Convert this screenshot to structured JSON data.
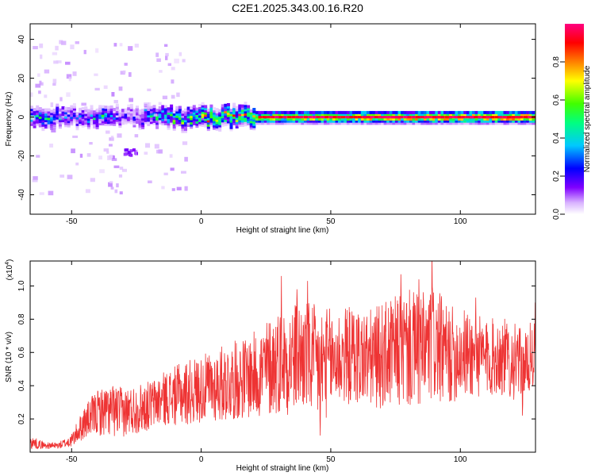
{
  "chart_data": [
    {
      "type": "heatmap",
      "title": "C2E1.2025.343.00.16.R20",
      "xlabel": "Height of straight line (km)",
      "ylabel": "Frequency (Hz)",
      "xlim": [
        -66,
        129
      ],
      "ylim": [
        -50,
        48
      ],
      "xticks": [
        -50,
        0,
        50,
        100
      ],
      "yticks": [
        -40,
        -20,
        0,
        20,
        40
      ],
      "colorbar": {
        "label": "Normalized spectral amplitude",
        "range": [
          0,
          1
        ],
        "ticks": [
          "0.0",
          "0.2",
          "0.4",
          "0.6",
          "0.8"
        ],
        "tick_values": [
          0.0,
          0.2,
          0.4,
          0.6,
          0.8
        ],
        "colors": [
          "#ffffff",
          "#d9b3ff",
          "#8000ff",
          "#0000ff",
          "#00c8ff",
          "#00ff80",
          "#40ff00",
          "#ffff00",
          "#ff8000",
          "#ff0000",
          "#ff0080"
        ]
      },
      "description_points": [
        {
          "x": -62,
          "y": 0,
          "amp": 0.45
        },
        {
          "x": -55,
          "y": 2,
          "amp": 0.35
        },
        {
          "x": -45,
          "y": -1,
          "amp": 0.3
        },
        {
          "x": -38,
          "y": 3,
          "amp": 0.4
        },
        {
          "x": -28,
          "y": -18,
          "amp": 0.2
        },
        {
          "x": -20,
          "y": 1,
          "amp": 0.4
        },
        {
          "x": -5,
          "y": 2,
          "amp": 0.6
        },
        {
          "x": 10,
          "y": 1,
          "amp": 0.7
        },
        {
          "x": 30,
          "y": 0,
          "amp": 0.85
        },
        {
          "x": 60,
          "y": 0,
          "amp": 0.9
        },
        {
          "x": 100,
          "y": 0,
          "amp": 0.95
        },
        {
          "x": 128,
          "y": 0,
          "amp": 0.95
        }
      ]
    },
    {
      "type": "line",
      "title": "",
      "xlabel": "Height of straight line (km)",
      "ylabel": "SNR (10 * v/v)",
      "ylabel_scale": "(x10",
      "ylabel_scale_exp": "4",
      "xlim": [
        -66,
        129
      ],
      "ylim": [
        0,
        1.15
      ],
      "xticks": [
        -50,
        0,
        50,
        100
      ],
      "yticks": [
        "0.2",
        "0.4",
        "0.6",
        "0.8",
        "1.0"
      ],
      "ytick_values": [
        0.2,
        0.4,
        0.6,
        0.8,
        1.0
      ],
      "color": "#ee3333",
      "series": [
        {
          "name": "SNR",
          "x": [
            -66,
            -60,
            -55,
            -50,
            -45,
            -40,
            -35,
            -30,
            -25,
            -20,
            -15,
            -10,
            -5,
            0,
            5,
            10,
            15,
            20,
            25,
            30,
            35,
            40,
            45,
            50,
            55,
            60,
            65,
            70,
            75,
            80,
            85,
            90,
            95,
            100,
            105,
            110,
            115,
            120,
            125,
            129
          ],
          "mean": [
            0.06,
            0.04,
            0.04,
            0.07,
            0.18,
            0.24,
            0.25,
            0.24,
            0.26,
            0.28,
            0.32,
            0.34,
            0.36,
            0.38,
            0.4,
            0.42,
            0.44,
            0.46,
            0.5,
            0.55,
            0.56,
            0.58,
            0.52,
            0.55,
            0.58,
            0.58,
            0.56,
            0.58,
            0.6,
            0.62,
            0.6,
            0.65,
            0.58,
            0.6,
            0.58,
            0.56,
            0.58,
            0.55,
            0.52,
            0.6
          ],
          "amplitude": [
            0.04,
            0.02,
            0.02,
            0.04,
            0.1,
            0.14,
            0.16,
            0.15,
            0.15,
            0.15,
            0.16,
            0.18,
            0.2,
            0.2,
            0.22,
            0.24,
            0.24,
            0.26,
            0.3,
            0.32,
            0.34,
            0.34,
            0.36,
            0.32,
            0.3,
            0.3,
            0.3,
            0.32,
            0.34,
            0.36,
            0.36,
            0.36,
            0.3,
            0.28,
            0.26,
            0.24,
            0.24,
            0.24,
            0.2,
            0.24
          ],
          "peaks": [
            {
              "x": 31,
              "y": 1.06
            },
            {
              "x": 37,
              "y": 0.98
            },
            {
              "x": 41,
              "y": 1.03
            },
            {
              "x": 46,
              "y": 0.1
            },
            {
              "x": 77,
              "y": 1.07
            },
            {
              "x": 84,
              "y": 1.04
            },
            {
              "x": 89,
              "y": 1.18
            },
            {
              "x": 106,
              "y": 0.93
            },
            {
              "x": 124,
              "y": 0.22
            },
            {
              "x": 129,
              "y": 0.9
            }
          ]
        }
      ]
    }
  ]
}
